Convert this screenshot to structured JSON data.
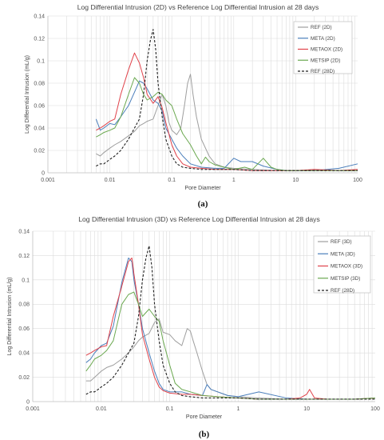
{
  "chart_data": [
    {
      "type": "line",
      "title": "Log Differential Intrusion (2D) vs Reference Log Differential Intrusion at 28 days",
      "xlabel": "Pore Diameter",
      "ylabel": "Log Differential Intrusion (mL/g)",
      "xscale": "log",
      "xlim": [
        0.001,
        100
      ],
      "ylim": [
        0,
        0.14
      ],
      "xticks": [
        "0.001",
        "0.01",
        "0.1",
        "1",
        "10",
        "100"
      ],
      "yticks": [
        "0",
        "0.02",
        "0.04",
        "0.06",
        "0.08",
        "0.1",
        "0.12",
        "0.14"
      ],
      "grid": true,
      "legend_position": "top-right",
      "caption": "(a)",
      "series": [
        {
          "name": "REF (2D)",
          "color": "#9e9e9e",
          "dash": "solid",
          "x": [
            0.006,
            0.007,
            0.008,
            0.01,
            0.012,
            0.015,
            0.02,
            0.025,
            0.03,
            0.035,
            0.04,
            0.05,
            0.06,
            0.07,
            0.08,
            0.09,
            0.1,
            0.12,
            0.14,
            0.16,
            0.18,
            0.2,
            0.22,
            0.25,
            0.3,
            0.4,
            0.5,
            0.7,
            1,
            2,
            5,
            10,
            20,
            50,
            100
          ],
          "y": [
            0.017,
            0.015,
            0.018,
            0.022,
            0.025,
            0.028,
            0.033,
            0.037,
            0.042,
            0.044,
            0.046,
            0.048,
            0.06,
            0.07,
            0.06,
            0.045,
            0.038,
            0.034,
            0.04,
            0.06,
            0.08,
            0.088,
            0.07,
            0.05,
            0.03,
            0.015,
            0.008,
            0.005,
            0.004,
            0.003,
            0.002,
            0.002,
            0.002,
            0.002,
            0.002
          ]
        },
        {
          "name": "META (2D)",
          "color": "#4a7ebb",
          "dash": "solid",
          "x": [
            0.006,
            0.007,
            0.008,
            0.01,
            0.012,
            0.015,
            0.02,
            0.025,
            0.03,
            0.035,
            0.04,
            0.05,
            0.06,
            0.07,
            0.08,
            0.1,
            0.12,
            0.15,
            0.2,
            0.3,
            0.5,
            0.7,
            1,
            1.3,
            2,
            3,
            5,
            7,
            10,
            20,
            50,
            100
          ],
          "y": [
            0.048,
            0.038,
            0.04,
            0.044,
            0.043,
            0.05,
            0.06,
            0.072,
            0.082,
            0.08,
            0.075,
            0.065,
            0.062,
            0.055,
            0.04,
            0.03,
            0.022,
            0.015,
            0.008,
            0.005,
            0.004,
            0.004,
            0.013,
            0.01,
            0.01,
            0.006,
            0.003,
            0.002,
            0.002,
            0.002,
            0.004,
            0.008
          ]
        },
        {
          "name": "METAOX (2D)",
          "color": "#e0424a",
          "dash": "solid",
          "x": [
            0.006,
            0.007,
            0.008,
            0.01,
            0.012,
            0.015,
            0.02,
            0.025,
            0.03,
            0.035,
            0.04,
            0.05,
            0.06,
            0.07,
            0.08,
            0.1,
            0.12,
            0.15,
            0.2,
            0.3,
            0.5,
            1,
            2,
            5,
            10,
            20,
            50,
            100
          ],
          "y": [
            0.038,
            0.04,
            0.042,
            0.046,
            0.048,
            0.07,
            0.092,
            0.107,
            0.098,
            0.085,
            0.07,
            0.062,
            0.068,
            0.058,
            0.045,
            0.025,
            0.015,
            0.008,
            0.005,
            0.004,
            0.003,
            0.003,
            0.002,
            0.002,
            0.002,
            0.003,
            0.002,
            0.003
          ]
        },
        {
          "name": "METSIP (2D)",
          "color": "#6aa84f",
          "dash": "solid",
          "x": [
            0.006,
            0.007,
            0.008,
            0.01,
            0.012,
            0.015,
            0.02,
            0.025,
            0.03,
            0.035,
            0.04,
            0.05,
            0.06,
            0.07,
            0.08,
            0.1,
            0.12,
            0.15,
            0.2,
            0.25,
            0.3,
            0.35,
            0.4,
            0.5,
            0.7,
            1,
            1.5,
            2,
            3,
            4,
            5,
            7,
            10,
            20,
            50,
            100
          ],
          "y": [
            0.032,
            0.034,
            0.036,
            0.038,
            0.04,
            0.05,
            0.07,
            0.085,
            0.08,
            0.07,
            0.065,
            0.068,
            0.072,
            0.07,
            0.065,
            0.06,
            0.048,
            0.035,
            0.025,
            0.015,
            0.008,
            0.014,
            0.01,
            0.007,
            0.005,
            0.003,
            0.005,
            0.003,
            0.013,
            0.005,
            0.003,
            0.002,
            0.002,
            0.002,
            0.002,
            0.002
          ]
        },
        {
          "name": "REF (28D)",
          "color": "#222222",
          "dash": "dashed",
          "x": [
            0.006,
            0.007,
            0.008,
            0.009,
            0.01,
            0.012,
            0.015,
            0.02,
            0.025,
            0.03,
            0.035,
            0.04,
            0.045,
            0.05,
            0.055,
            0.06,
            0.07,
            0.08,
            0.1,
            0.12,
            0.15,
            0.2,
            0.3,
            0.5,
            1,
            2,
            5,
            10,
            20,
            50,
            100
          ],
          "y": [
            0.006,
            0.008,
            0.008,
            0.01,
            0.012,
            0.015,
            0.02,
            0.03,
            0.04,
            0.048,
            0.07,
            0.1,
            0.118,
            0.128,
            0.11,
            0.08,
            0.05,
            0.03,
            0.015,
            0.008,
            0.005,
            0.004,
            0.003,
            0.003,
            0.003,
            0.002,
            0.002,
            0.002,
            0.002,
            0.002,
            0.002
          ]
        }
      ]
    },
    {
      "type": "line",
      "title": "Log Differential Intrusion (3D) vs Reference Log Differential Intrusion at 28 days",
      "xlabel": "Pore Diameter",
      "ylabel": "Log Differential Intrusion (mL/g)",
      "xscale": "log",
      "xlim": [
        0.001,
        100
      ],
      "ylim": [
        0,
        0.14
      ],
      "xticks": [
        "0.001",
        "0.01",
        "0.1",
        "1",
        "10",
        "100"
      ],
      "yticks": [
        "0",
        "0.02",
        "0.04",
        "0.06",
        "0.08",
        "0.1",
        "0.12",
        "0.14"
      ],
      "grid": true,
      "legend_position": "top-right",
      "caption": "(b)",
      "series": [
        {
          "name": "REF (3D)",
          "color": "#9e9e9e",
          "dash": "solid",
          "x": [
            0.006,
            0.007,
            0.008,
            0.01,
            0.012,
            0.015,
            0.02,
            0.025,
            0.03,
            0.035,
            0.04,
            0.05,
            0.06,
            0.07,
            0.08,
            0.1,
            0.12,
            0.15,
            0.18,
            0.2,
            0.22,
            0.25,
            0.3,
            0.35,
            0.4,
            0.5,
            0.7,
            1,
            2,
            5,
            10,
            20,
            50,
            100
          ],
          "y": [
            0.017,
            0.017,
            0.02,
            0.025,
            0.028,
            0.03,
            0.035,
            0.04,
            0.045,
            0.05,
            0.053,
            0.056,
            0.065,
            0.068,
            0.057,
            0.055,
            0.05,
            0.046,
            0.06,
            0.058,
            0.05,
            0.04,
            0.025,
            0.014,
            0.01,
            0.008,
            0.005,
            0.004,
            0.003,
            0.002,
            0.002,
            0.002,
            0.002,
            0.003
          ]
        },
        {
          "name": "META (3D)",
          "color": "#4a7ebb",
          "dash": "solid",
          "x": [
            0.006,
            0.007,
            0.008,
            0.01,
            0.012,
            0.015,
            0.02,
            0.025,
            0.028,
            0.03,
            0.035,
            0.04,
            0.05,
            0.06,
            0.07,
            0.08,
            0.1,
            0.15,
            0.2,
            0.3,
            0.35,
            0.4,
            0.5,
            0.7,
            1,
            2,
            5,
            10,
            20,
            50,
            100
          ],
          "y": [
            0.032,
            0.035,
            0.04,
            0.046,
            0.048,
            0.062,
            0.098,
            0.118,
            0.115,
            0.1,
            0.08,
            0.06,
            0.04,
            0.025,
            0.015,
            0.01,
            0.008,
            0.008,
            0.006,
            0.005,
            0.014,
            0.01,
            0.008,
            0.005,
            0.004,
            0.008,
            0.003,
            0.002,
            0.002,
            0.002,
            0.003
          ]
        },
        {
          "name": "METAOX (3D)",
          "color": "#e0424a",
          "dash": "solid",
          "x": [
            0.006,
            0.007,
            0.008,
            0.01,
            0.012,
            0.015,
            0.02,
            0.025,
            0.028,
            0.03,
            0.035,
            0.04,
            0.05,
            0.06,
            0.07,
            0.08,
            0.1,
            0.15,
            0.2,
            0.3,
            0.5,
            1,
            2,
            5,
            8,
            10,
            11,
            13,
            20,
            50,
            100
          ],
          "y": [
            0.038,
            0.04,
            0.042,
            0.045,
            0.046,
            0.07,
            0.095,
            0.115,
            0.118,
            0.105,
            0.08,
            0.055,
            0.035,
            0.02,
            0.012,
            0.009,
            0.007,
            0.006,
            0.006,
            0.005,
            0.004,
            0.003,
            0.002,
            0.002,
            0.003,
            0.006,
            0.01,
            0.003,
            0.002,
            0.002,
            0.003
          ]
        },
        {
          "name": "METSIP (3D)",
          "color": "#6aa84f",
          "dash": "solid",
          "x": [
            0.006,
            0.007,
            0.008,
            0.01,
            0.012,
            0.015,
            0.02,
            0.025,
            0.03,
            0.035,
            0.04,
            0.05,
            0.06,
            0.07,
            0.08,
            0.1,
            0.12,
            0.15,
            0.2,
            0.3,
            0.5,
            1,
            2,
            5,
            10,
            20,
            50,
            100
          ],
          "y": [
            0.025,
            0.03,
            0.035,
            0.038,
            0.042,
            0.05,
            0.08,
            0.088,
            0.09,
            0.08,
            0.07,
            0.076,
            0.07,
            0.066,
            0.05,
            0.03,
            0.015,
            0.01,
            0.008,
            0.005,
            0.004,
            0.003,
            0.002,
            0.002,
            0.002,
            0.002,
            0.002,
            0.003
          ]
        },
        {
          "name": "REF (28D)",
          "color": "#222222",
          "dash": "dashed",
          "x": [
            0.006,
            0.007,
            0.008,
            0.009,
            0.01,
            0.012,
            0.015,
            0.02,
            0.025,
            0.03,
            0.035,
            0.04,
            0.045,
            0.05,
            0.055,
            0.06,
            0.07,
            0.08,
            0.1,
            0.12,
            0.15,
            0.2,
            0.3,
            0.5,
            1,
            2,
            5,
            10,
            20,
            50,
            100
          ],
          "y": [
            0.006,
            0.008,
            0.008,
            0.01,
            0.012,
            0.015,
            0.02,
            0.03,
            0.04,
            0.048,
            0.07,
            0.1,
            0.118,
            0.128,
            0.11,
            0.08,
            0.05,
            0.03,
            0.015,
            0.008,
            0.005,
            0.004,
            0.003,
            0.003,
            0.003,
            0.002,
            0.002,
            0.002,
            0.002,
            0.002,
            0.002
          ]
        }
      ]
    }
  ]
}
